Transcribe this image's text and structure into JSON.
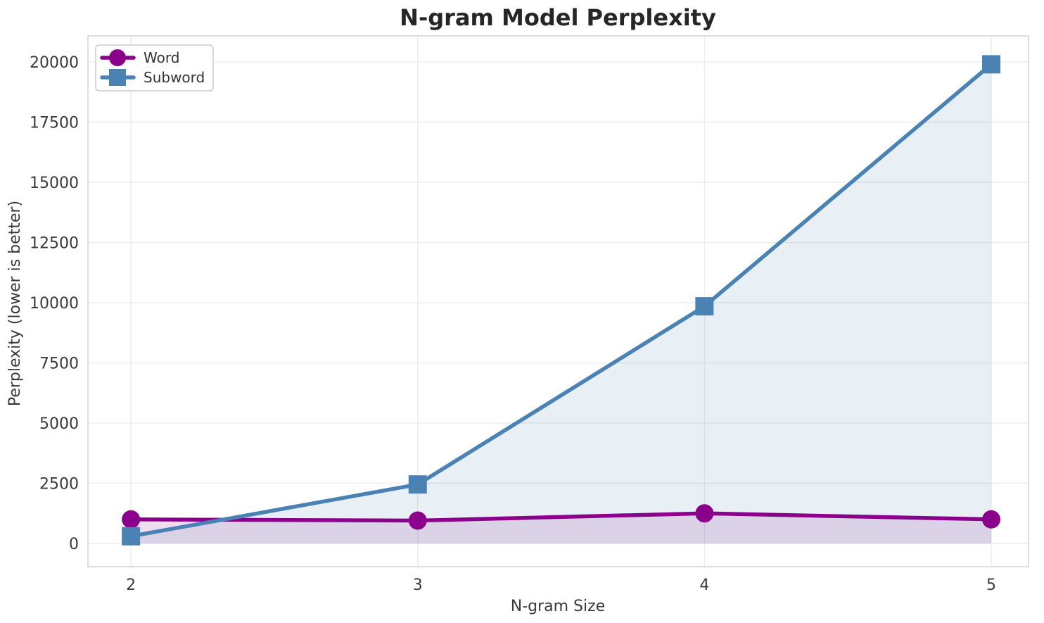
{
  "figure": {
    "background": "#ffffff"
  },
  "chart_data": {
    "type": "line",
    "title": "N-gram Model Perplexity",
    "xlabel": "N-gram Size",
    "ylabel": "Perplexity (lower is better)",
    "x": [
      2,
      3,
      4,
      5
    ],
    "xticks": [
      "2",
      "3",
      "4",
      "5"
    ],
    "yticks": [
      0,
      2500,
      5000,
      7500,
      10000,
      12500,
      15000,
      17500,
      20000
    ],
    "xlim": [
      1.85,
      5.13
    ],
    "ylim": [
      -965,
      21080
    ],
    "grid": true,
    "legend_position": "upper-left",
    "series": [
      {
        "name": "Word",
        "values": [
          1000,
          950,
          1250,
          1000
        ],
        "color": "#8b008b",
        "marker": "circle",
        "area_fill": true,
        "fill_opacity": 0.13
      },
      {
        "name": "Subword",
        "values": [
          300,
          2450,
          9850,
          19900
        ],
        "color": "#4a82b4",
        "marker": "square",
        "area_fill": true,
        "fill_opacity": 0.13
      }
    ],
    "colors": {
      "grid": "#ebebeb",
      "spine": "#d6d6d6",
      "tick_text": "#3a3a3a",
      "title_text": "#262626",
      "legend_border": "#cccccc",
      "legend_background": "#ffffff"
    }
  }
}
